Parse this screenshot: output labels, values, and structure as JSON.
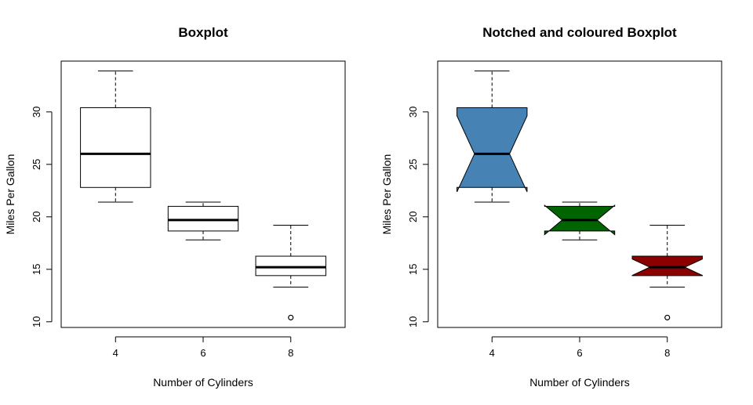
{
  "chart_data": [
    {
      "type": "boxplot",
      "title": "Boxplot",
      "xlabel": "Number of Cylinders",
      "ylabel": "Miles Per Gallon",
      "notch": false,
      "categories": [
        "4",
        "6",
        "8"
      ],
      "yticks": [
        "10",
        "15",
        "20",
        "25",
        "30"
      ],
      "ylim": [
        9.46,
        34.84
      ],
      "boxes": [
        {
          "min": 21.4,
          "q1": 22.8,
          "median": 26.0,
          "q3": 30.4,
          "max": 33.9,
          "outliers": [],
          "fill": "#ffffff"
        },
        {
          "min": 17.8,
          "q1": 18.65,
          "median": 19.7,
          "q3": 21.0,
          "max": 21.4,
          "outliers": [],
          "fill": "#ffffff"
        },
        {
          "min": 13.3,
          "q1": 14.4,
          "median": 15.2,
          "q3": 16.25,
          "max": 19.2,
          "outliers": [
            10.4,
            10.4
          ],
          "fill": "#ffffff"
        }
      ]
    },
    {
      "type": "boxplot",
      "title": "Notched and coloured Boxplot",
      "xlabel": "Number of Cylinders",
      "ylabel": "Miles Per Gallon",
      "notch": true,
      "categories": [
        "4",
        "6",
        "8"
      ],
      "yticks": [
        "10",
        "15",
        "20",
        "25",
        "30"
      ],
      "ylim": [
        9.46,
        34.84
      ],
      "boxes": [
        {
          "min": 21.4,
          "q1": 22.8,
          "median": 26.0,
          "q3": 30.4,
          "max": 33.9,
          "notch_lo": 22.38,
          "notch_hi": 29.62,
          "outliers": [],
          "fill": "#4682B4"
        },
        {
          "min": 17.8,
          "q1": 18.65,
          "median": 19.7,
          "q3": 21.0,
          "max": 21.4,
          "notch_lo": 18.3,
          "notch_hi": 21.1,
          "outliers": [],
          "fill": "#006400"
        },
        {
          "min": 13.3,
          "q1": 14.4,
          "median": 15.2,
          "q3": 16.25,
          "max": 19.2,
          "notch_lo": 14.42,
          "notch_hi": 15.98,
          "outliers": [
            10.4,
            10.4
          ],
          "fill": "#8B0000"
        }
      ]
    }
  ]
}
